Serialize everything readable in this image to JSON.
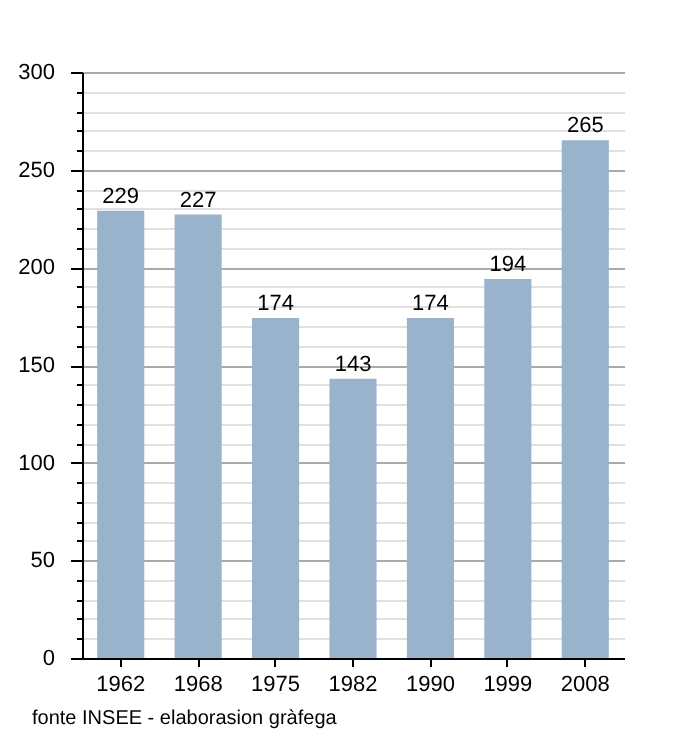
{
  "chart_data": {
    "type": "bar",
    "categories": [
      "1962",
      "1968",
      "1975",
      "1982",
      "1990",
      "1999",
      "2008"
    ],
    "values": [
      229,
      227,
      174,
      143,
      174,
      194,
      265
    ],
    "color": "#99b3cc",
    "data_labels": true,
    "ylim": [
      0,
      300
    ],
    "yticks": [
      0,
      {
        "value": 10,
        "label": null
      },
      {
        "value": 20,
        "label": null
      },
      {
        "value": 30,
        "label": null
      },
      {
        "value": 40,
        "label": null
      },
      50,
      {
        "value": 60,
        "label": null
      },
      {
        "value": 70,
        "label": null
      },
      {
        "value": 80,
        "label": null
      },
      {
        "value": 90,
        "label": null
      },
      100,
      {
        "value": 110,
        "label": null
      },
      {
        "value": 120,
        "label": null
      },
      {
        "value": 130,
        "label": null
      },
      {
        "value": 140,
        "label": null
      },
      150,
      {
        "value": 160,
        "label": null
      },
      {
        "value": 170,
        "label": null
      },
      {
        "value": 180,
        "label": null
      },
      {
        "value": 190,
        "label": null
      },
      200,
      {
        "value": 210,
        "label": null
      },
      {
        "value": 220,
        "label": null
      },
      {
        "value": 230,
        "label": null
      },
      {
        "value": 240,
        "label": null
      },
      250,
      {
        "value": 260,
        "label": null
      },
      {
        "value": 270,
        "label": null
      },
      {
        "value": 280,
        "label": null
      },
      {
        "value": 290,
        "label": null
      },
      300
    ],
    "grid": true,
    "annotations": [
      "fonte INSEE - elaborasion gràfega"
    ]
  }
}
